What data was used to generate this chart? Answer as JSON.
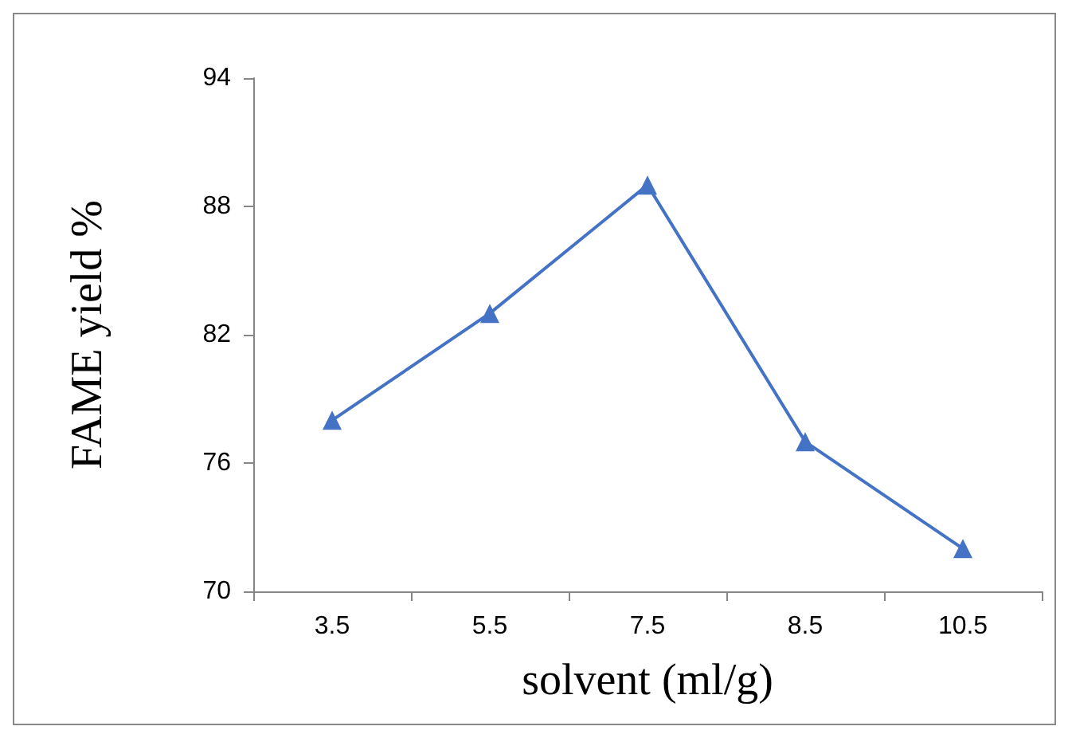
{
  "chart_data": {
    "type": "line",
    "xlabel": "solvent (ml/g)",
    "ylabel": "FAME yield %",
    "categories": [
      "3.5",
      "5.5",
      "7.5",
      "8.5",
      "10.5"
    ],
    "series": [
      {
        "color": "#4472c4",
        "values": [
          78,
          83,
          89,
          77,
          72
        ]
      }
    ],
    "ylim": [
      70,
      94
    ],
    "yticks": [
      70,
      76,
      82,
      88,
      94
    ],
    "grid": false,
    "marker": "triangle",
    "line_style": "solid"
  }
}
